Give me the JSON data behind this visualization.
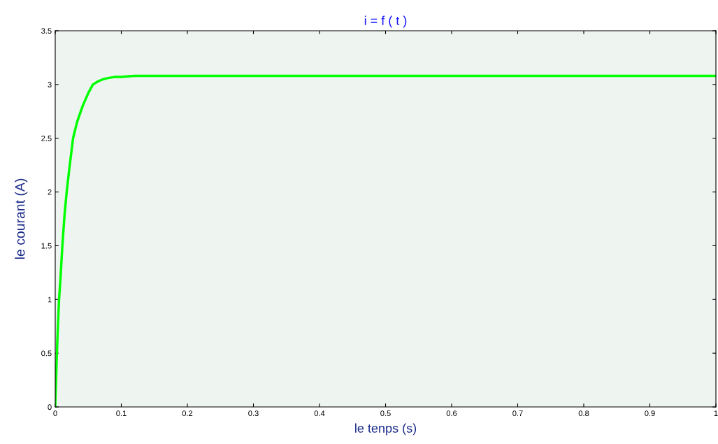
{
  "chart_data": {
    "type": "line",
    "title": "i = f ( t )",
    "xlabel": "le tenps (s)",
    "ylabel": "le courant (A)",
    "x": [
      0,
      0.002,
      0.004,
      0.0058,
      0.008,
      0.0108,
      0.014,
      0.0173,
      0.021,
      0.027,
      0.033,
      0.0415,
      0.05,
      0.057,
      0.065,
      0.073,
      0.08,
      0.09,
      0.1,
      0.12,
      0.15,
      0.2,
      0.3,
      0.5,
      0.7,
      0.9,
      1
    ],
    "series": [
      {
        "color": "#00ff00",
        "values": [
          0,
          0.4,
          0.75,
          1,
          1.2,
          1.5,
          1.78,
          2,
          2.2,
          2.5,
          2.65,
          2.8,
          2.92,
          3,
          3.03,
          3.05,
          3.06,
          3.07,
          3.07,
          3.08,
          3.08,
          3.08,
          3.08,
          3.08,
          3.08,
          3.08,
          3.08
        ]
      }
    ],
    "xlim": [
      0,
      1
    ],
    "xticks": [
      0,
      0.1,
      0.2,
      0.3,
      0.4,
      0.5,
      0.6,
      0.7,
      0.8,
      0.9,
      1
    ],
    "ylim": [
      0,
      3.5
    ],
    "yticks": [
      0,
      0.5,
      1,
      1.5,
      2,
      2.5,
      3,
      3.5
    ],
    "grid": false,
    "legend": false,
    "marker": "none",
    "line_style": "solid"
  }
}
